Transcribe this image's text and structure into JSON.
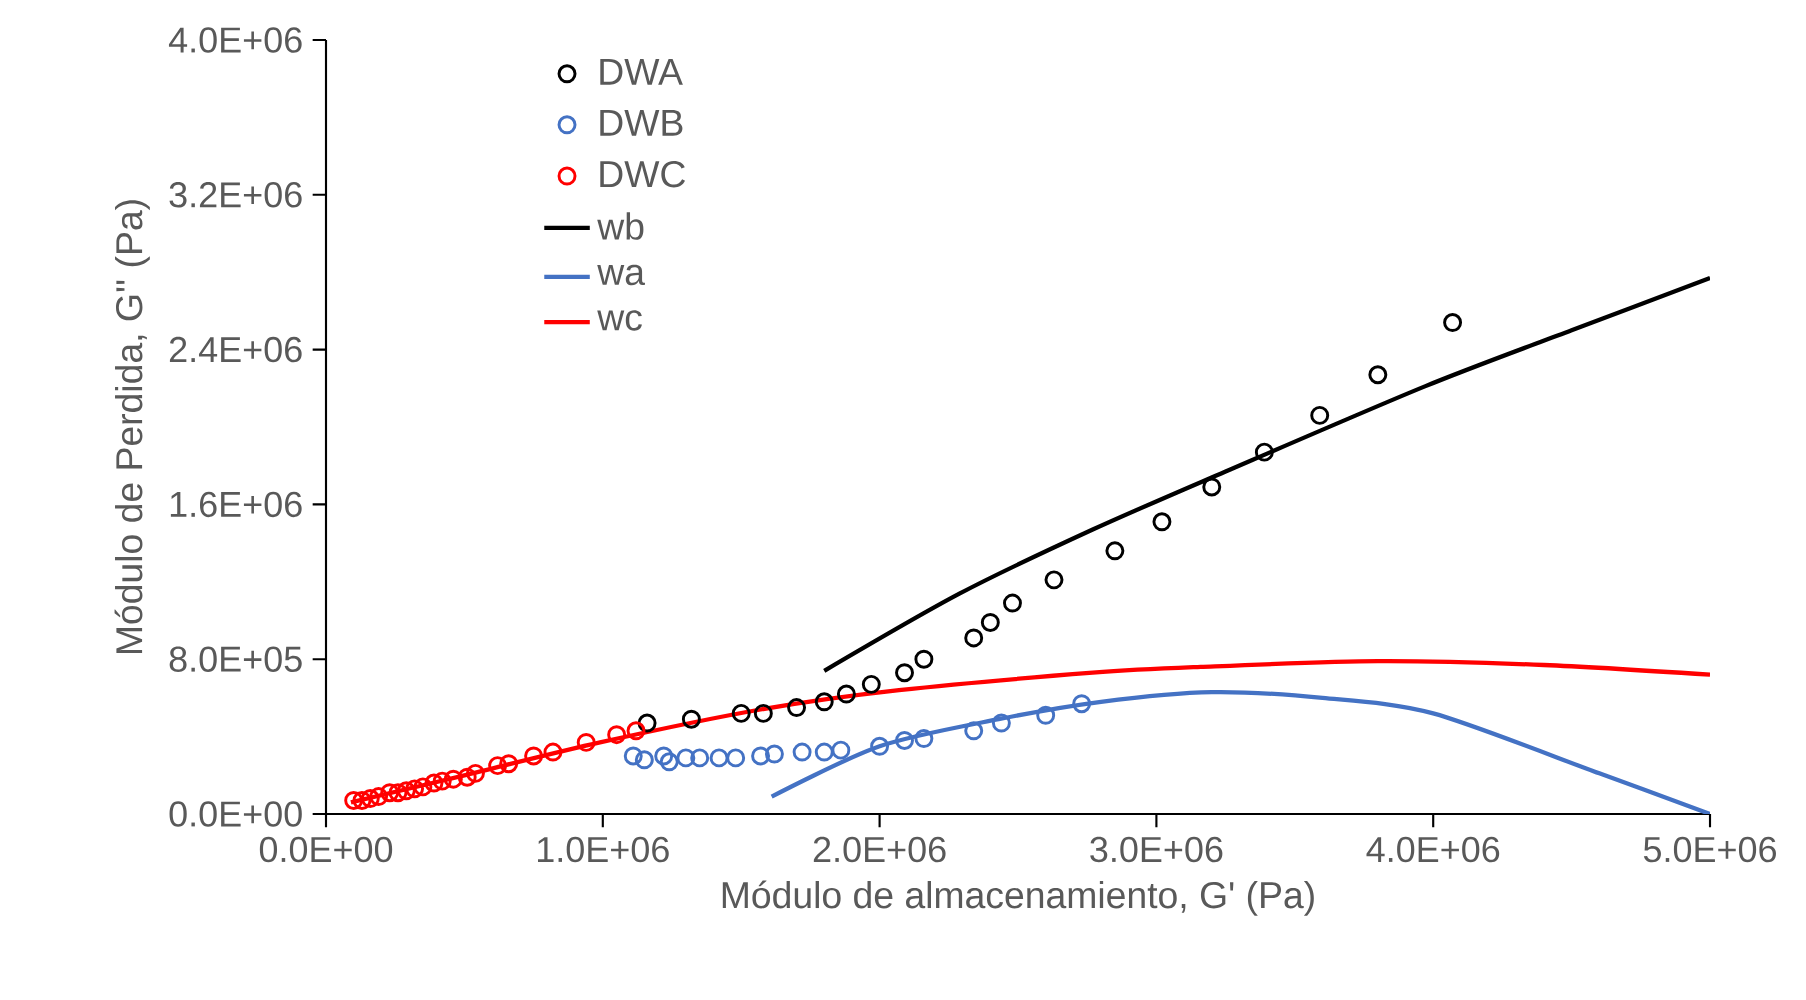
{
  "chart_data": {
    "type": "scatter",
    "xlabel": "Módulo de almacenamiento, G' (Pa)",
    "ylabel": "Módulo de Perdida, G'' (Pa)",
    "xlim": [
      0,
      5000000
    ],
    "ylim": [
      0,
      4000000
    ],
    "xticks": [
      {
        "value": 0,
        "label": "0.0E+00"
      },
      {
        "value": 1000000,
        "label": "1.0E+06"
      },
      {
        "value": 2000000,
        "label": "2.0E+06"
      },
      {
        "value": 3000000,
        "label": "3.0E+06"
      },
      {
        "value": 4000000,
        "label": "4.0E+06"
      },
      {
        "value": 5000000,
        "label": "5.0E+06"
      }
    ],
    "yticks": [
      {
        "value": 0,
        "label": "0.0E+00"
      },
      {
        "value": 800000,
        "label": "8.0E+05"
      },
      {
        "value": 1600000,
        "label": "1.6E+06"
      },
      {
        "value": 2400000,
        "label": "2.4E+06"
      },
      {
        "value": 3200000,
        "label": "3.2E+06"
      },
      {
        "value": 4000000,
        "label": "4.0E+06"
      }
    ],
    "grid": false,
    "legend": "top left",
    "marker": "circle",
    "series": [
      {
        "name": "DWA",
        "color": "#000000",
        "x": [
          1160000,
          1320000,
          1500000,
          1580000,
          1700000,
          1800000,
          1880000,
          1970000,
          2090000,
          2160000,
          2340000,
          2400000,
          2480000,
          2630000,
          2850000,
          3020000,
          3200000,
          3390000,
          3590000,
          3800000,
          4070000
        ],
        "values": [
          470000,
          490000,
          520000,
          520000,
          550000,
          580000,
          620000,
          670000,
          730000,
          800000,
          910000,
          990000,
          1090000,
          1210000,
          1360000,
          1510000,
          1690000,
          1870000,
          2060000,
          2270000,
          2540000
        ]
      },
      {
        "name": "DWB",
        "color": "#4472c4",
        "x": [
          1110000,
          1150000,
          1220000,
          1240000,
          1300000,
          1350000,
          1420000,
          1480000,
          1570000,
          1620000,
          1720000,
          1800000,
          1860000,
          2000000,
          2090000,
          2160000,
          2340000,
          2440000,
          2600000,
          2730000
        ],
        "values": [
          300000,
          280000,
          300000,
          270000,
          290000,
          290000,
          290000,
          290000,
          300000,
          310000,
          320000,
          320000,
          330000,
          350000,
          380000,
          390000,
          430000,
          470000,
          510000,
          570000
        ]
      },
      {
        "name": "DWC",
        "color": "#ff0000",
        "x": [
          100000,
          130000,
          160000,
          190000,
          230000,
          260000,
          290000,
          320000,
          350000,
          390000,
          420000,
          460000,
          510000,
          540000,
          620000,
          660000,
          750000,
          820000,
          940000,
          1050000,
          1120000
        ],
        "values": [
          70000,
          70000,
          80000,
          90000,
          110000,
          110000,
          120000,
          130000,
          140000,
          160000,
          170000,
          180000,
          190000,
          210000,
          250000,
          260000,
          300000,
          320000,
          370000,
          410000,
          430000
        ]
      },
      {
        "name": "wb",
        "type": "line",
        "marker": "none",
        "color": "#000000",
        "x": [
          1800000,
          2290000,
          2770000,
          3250000,
          3970000,
          4500000,
          5000000
        ],
        "values": [
          740000,
          1140000,
          1470000,
          1770000,
          2210000,
          2500000,
          2770000
        ]
      },
      {
        "name": "wa",
        "type": "line",
        "marker": "none",
        "color": "#4472c4",
        "x": [
          1610000,
          2000000,
          2430000,
          2800000,
          3200000,
          3600000,
          4000000,
          4600000,
          5000000
        ],
        "values": [
          90000,
          350000,
          490000,
          580000,
          630000,
          600000,
          520000,
          210000,
          0
        ]
      },
      {
        "name": "wc",
        "type": "line",
        "marker": "none",
        "color": "#ff0000",
        "x": [
          90000,
          500000,
          990000,
          1570000,
          2070000,
          2770000,
          3160000,
          3800000,
          4400000,
          5000000
        ],
        "values": [
          60000,
          200000,
          370000,
          540000,
          640000,
          730000,
          760000,
          790000,
          770000,
          720000
        ]
      }
    ]
  }
}
